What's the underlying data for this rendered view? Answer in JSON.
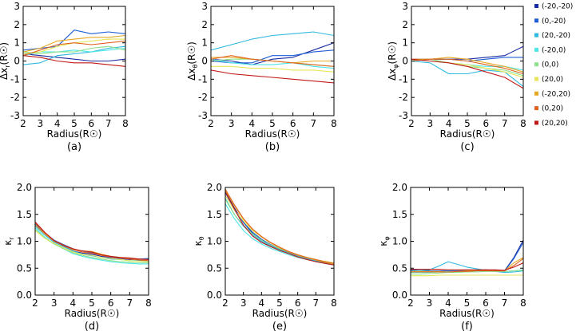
{
  "figure_title": "",
  "chart_data": [
    {
      "id": "a",
      "type": "line",
      "panel_label": "(a)",
      "ylabel_main": "Δx",
      "ylabel_sub": "r",
      "ylabel_unit": "(R☉)",
      "xlabel": "Radius(R☉)",
      "xlim": [
        2,
        8
      ],
      "ylim": [
        -3,
        3
      ],
      "xticks": [
        2,
        3,
        4,
        5,
        6,
        7,
        8
      ],
      "yticks": [
        -3,
        -2,
        -1,
        0,
        1,
        2,
        3
      ],
      "x": [
        2,
        3,
        4,
        5,
        6,
        7,
        8
      ],
      "series": [
        {
          "name": "(-20,-20)",
          "values": [
            0.4,
            0.3,
            0.2,
            0.1,
            0.0,
            0.0,
            0.1
          ]
        },
        {
          "name": "(0,-20)",
          "values": [
            0.6,
            0.7,
            0.8,
            1.7,
            1.5,
            1.6,
            1.5
          ]
        },
        {
          "name": "(20,-20)",
          "values": [
            -0.2,
            -0.1,
            0.3,
            0.4,
            0.5,
            0.7,
            0.8
          ]
        },
        {
          "name": "(-20,0)",
          "values": [
            0.3,
            0.5,
            0.5,
            0.6,
            0.5,
            0.6,
            0.7
          ]
        },
        {
          "name": "(0,0)",
          "values": [
            0.5,
            0.4,
            0.5,
            0.5,
            0.7,
            0.8,
            0.6
          ]
        },
        {
          "name": "(20,0)",
          "values": [
            0.4,
            0.5,
            0.8,
            1.0,
            1.1,
            1.2,
            1.2
          ]
        },
        {
          "name": "(-20,20)",
          "values": [
            0.5,
            0.7,
            1.1,
            1.2,
            1.3,
            1.3,
            1.4
          ]
        },
        {
          "name": "(0,20)",
          "values": [
            0.3,
            0.6,
            0.9,
            1.0,
            0.9,
            1.0,
            1.1
          ]
        },
        {
          "name": "(20,20)",
          "values": [
            0.3,
            0.2,
            0.0,
            -0.1,
            -0.1,
            -0.2,
            -0.3
          ]
        }
      ]
    },
    {
      "id": "b",
      "type": "line",
      "panel_label": "(b)",
      "ylabel_main": "Δx",
      "ylabel_sub": "θ",
      "ylabel_unit": "(R☉)",
      "xlabel": "Radius(R☉)",
      "xlim": [
        2,
        8
      ],
      "ylim": [
        -3,
        3
      ],
      "xticks": [
        2,
        3,
        4,
        5,
        6,
        7,
        8
      ],
      "yticks": [
        -3,
        -2,
        -1,
        0,
        1,
        2,
        3
      ],
      "x": [
        2,
        3,
        4,
        5,
        6,
        7,
        8
      ],
      "series": [
        {
          "name": "(-20,-20)",
          "values": [
            0.1,
            0.0,
            -0.2,
            0.1,
            0.2,
            0.6,
            1.0
          ]
        },
        {
          "name": "(0,-20)",
          "values": [
            0.0,
            -0.1,
            -0.1,
            0.3,
            0.3,
            0.5,
            0.6
          ]
        },
        {
          "name": "(20,-20)",
          "values": [
            0.6,
            0.9,
            1.2,
            1.4,
            1.5,
            1.6,
            1.4
          ]
        },
        {
          "name": "(-20,0)",
          "values": [
            0.1,
            -0.1,
            -0.2,
            -0.2,
            -0.1,
            -0.3,
            -0.4
          ]
        },
        {
          "name": "(0,0)",
          "values": [
            0.0,
            0.1,
            0.1,
            0.0,
            -0.1,
            -0.2,
            -0.3
          ]
        },
        {
          "name": "(20,0)",
          "values": [
            -0.3,
            -0.3,
            -0.4,
            -0.4,
            -0.5,
            -0.5,
            -0.6
          ]
        },
        {
          "name": "(-20,20)",
          "values": [
            0.2,
            0.2,
            0.1,
            0.0,
            -0.1,
            0.0,
            0.0
          ]
        },
        {
          "name": "(0,20)",
          "values": [
            0.1,
            0.3,
            0.1,
            0.0,
            -0.1,
            -0.2,
            -0.3
          ]
        },
        {
          "name": "(20,20)",
          "values": [
            -0.5,
            -0.7,
            -0.8,
            -0.9,
            -1.0,
            -1.1,
            -1.2
          ]
        }
      ]
    },
    {
      "id": "c",
      "type": "line",
      "panel_label": "(c)",
      "ylabel_main": "Δx",
      "ylabel_sub": "φ",
      "ylabel_unit": "(R☉)",
      "xlabel": "Radius(R☉)",
      "xlim": [
        2,
        8
      ],
      "ylim": [
        -3,
        3
      ],
      "xticks": [
        2,
        3,
        4,
        5,
        6,
        7,
        8
      ],
      "yticks": [
        -3,
        -2,
        -1,
        0,
        1,
        2,
        3
      ],
      "x": [
        2,
        3,
        4,
        5,
        6,
        7,
        8
      ],
      "series": [
        {
          "name": "(-20,-20)",
          "values": [
            0.1,
            0.1,
            0.1,
            0.1,
            0.2,
            0.3,
            0.8
          ]
        },
        {
          "name": "(0,-20)",
          "values": [
            0.1,
            0.1,
            0.1,
            0.0,
            0.1,
            0.2,
            0.2
          ]
        },
        {
          "name": "(20,-20)",
          "values": [
            0.0,
            -0.1,
            -0.7,
            -0.7,
            -0.5,
            -0.6,
            -1.4
          ]
        },
        {
          "name": "(-20,0)",
          "values": [
            0.1,
            0.0,
            -0.1,
            -0.2,
            -0.3,
            -0.3,
            -0.5
          ]
        },
        {
          "name": "(0,0)",
          "values": [
            0.0,
            0.1,
            -0.1,
            -0.3,
            -0.4,
            -0.5,
            -0.8
          ]
        },
        {
          "name": "(20,0)",
          "values": [
            0.1,
            0.0,
            -0.1,
            -0.2,
            -0.4,
            -0.6,
            -0.9
          ]
        },
        {
          "name": "(-20,20)",
          "values": [
            0.1,
            0.1,
            0.2,
            0.1,
            -0.1,
            -0.3,
            -0.6
          ]
        },
        {
          "name": "(0,20)",
          "values": [
            0.0,
            0.1,
            0.1,
            0.0,
            -0.2,
            -0.4,
            -0.7
          ]
        },
        {
          "name": "(20,20)",
          "values": [
            0.1,
            0.0,
            -0.1,
            -0.3,
            -0.6,
            -0.9,
            -1.5
          ]
        }
      ]
    },
    {
      "id": "d",
      "type": "line",
      "panel_label": "(d)",
      "ylabel_main": "κ",
      "ylabel_sub": "r",
      "ylabel_unit": "",
      "xlabel": "Radius(R☉)",
      "xlim": [
        2,
        8
      ],
      "ylim": [
        0,
        2
      ],
      "xticks": [
        2,
        3,
        4,
        5,
        6,
        7,
        8
      ],
      "yticks": [
        "0.0",
        "0.5",
        "1.0",
        "1.5",
        "2.0"
      ],
      "x": [
        2,
        2.5,
        3,
        3.5,
        4,
        4.5,
        5,
        5.5,
        6,
        6.5,
        7,
        7.5,
        8
      ],
      "series": [
        {
          "name": "(-20,-20)",
          "values": [
            1.33,
            1.15,
            1.0,
            0.92,
            0.82,
            0.78,
            0.76,
            0.72,
            0.7,
            0.68,
            0.66,
            0.67,
            0.67
          ]
        },
        {
          "name": "(0,-20)",
          "values": [
            1.32,
            1.16,
            1.02,
            0.94,
            0.86,
            0.8,
            0.79,
            0.75,
            0.71,
            0.69,
            0.68,
            0.67,
            0.68
          ]
        },
        {
          "name": "(20,-20)",
          "values": [
            1.28,
            1.12,
            0.98,
            0.9,
            0.82,
            0.76,
            0.73,
            0.7,
            0.67,
            0.66,
            0.64,
            0.64,
            0.63
          ]
        },
        {
          "name": "(-20,0)",
          "values": [
            1.25,
            1.08,
            0.95,
            0.86,
            0.77,
            0.72,
            0.68,
            0.65,
            0.62,
            0.6,
            0.59,
            0.58,
            0.58
          ]
        },
        {
          "name": "(0,0)",
          "values": [
            1.22,
            1.06,
            0.95,
            0.86,
            0.79,
            0.74,
            0.7,
            0.67,
            0.64,
            0.62,
            0.61,
            0.6,
            0.6
          ]
        },
        {
          "name": "(20,0)",
          "values": [
            1.2,
            1.06,
            0.96,
            0.88,
            0.8,
            0.76,
            0.74,
            0.7,
            0.68,
            0.66,
            0.64,
            0.63,
            0.62
          ]
        },
        {
          "name": "(-20,20)",
          "values": [
            1.3,
            1.14,
            1.0,
            0.92,
            0.84,
            0.82,
            0.81,
            0.76,
            0.72,
            0.7,
            0.69,
            0.67,
            0.66
          ]
        },
        {
          "name": "(0,20)",
          "values": [
            1.34,
            1.16,
            1.01,
            0.93,
            0.85,
            0.8,
            0.78,
            0.74,
            0.71,
            0.69,
            0.67,
            0.65,
            0.64
          ]
        },
        {
          "name": "(20,20)",
          "values": [
            1.36,
            1.17,
            1.01,
            0.92,
            0.86,
            0.82,
            0.8,
            0.75,
            0.72,
            0.7,
            0.69,
            0.67,
            0.66
          ]
        }
      ]
    },
    {
      "id": "e",
      "type": "line",
      "panel_label": "(e)",
      "ylabel_main": "κ",
      "ylabel_sub": "θ",
      "ylabel_unit": "",
      "xlabel": "Radius(R☉)",
      "xlim": [
        2,
        8
      ],
      "ylim": [
        0,
        2
      ],
      "xticks": [
        2,
        3,
        4,
        5,
        6,
        7,
        8
      ],
      "yticks": [
        "0.0",
        "0.5",
        "1.0",
        "1.5",
        "2.0"
      ],
      "x": [
        2,
        2.5,
        3,
        3.5,
        4,
        4.5,
        5,
        5.5,
        6,
        6.5,
        7,
        7.5,
        8
      ],
      "series": [
        {
          "name": "(-20,-20)",
          "values": [
            1.93,
            1.62,
            1.35,
            1.15,
            1.02,
            0.92,
            0.85,
            0.78,
            0.72,
            0.67,
            0.63,
            0.59,
            0.56
          ]
        },
        {
          "name": "(0,-20)",
          "values": [
            1.9,
            1.6,
            1.35,
            1.17,
            1.04,
            0.94,
            0.86,
            0.79,
            0.73,
            0.68,
            0.64,
            0.6,
            0.57
          ]
        },
        {
          "name": "(20,-20)",
          "values": [
            1.8,
            1.5,
            1.28,
            1.12,
            1.0,
            0.91,
            0.84,
            0.78,
            0.72,
            0.68,
            0.64,
            0.61,
            0.58
          ]
        },
        {
          "name": "(-20,0)",
          "values": [
            1.7,
            1.42,
            1.2,
            1.05,
            0.95,
            0.87,
            0.81,
            0.75,
            0.7,
            0.66,
            0.62,
            0.59,
            0.56
          ]
        },
        {
          "name": "(0,0)",
          "values": [
            1.78,
            1.5,
            1.3,
            1.14,
            1.02,
            0.93,
            0.86,
            0.8,
            0.75,
            0.7,
            0.66,
            0.62,
            0.59
          ]
        },
        {
          "name": "(20,0)",
          "values": [
            1.85,
            1.58,
            1.38,
            1.2,
            1.08,
            0.97,
            0.88,
            0.81,
            0.75,
            0.7,
            0.66,
            0.63,
            0.6
          ]
        },
        {
          "name": "(-20,20)",
          "values": [
            1.95,
            1.66,
            1.41,
            1.22,
            1.08,
            0.97,
            0.88,
            0.8,
            0.74,
            0.69,
            0.65,
            0.61,
            0.58
          ]
        },
        {
          "name": "(0,20)",
          "values": [
            1.97,
            1.68,
            1.42,
            1.23,
            1.09,
            0.98,
            0.89,
            0.81,
            0.75,
            0.7,
            0.66,
            0.62,
            0.59
          ]
        },
        {
          "name": "(20,20)",
          "values": [
            1.92,
            1.6,
            1.3,
            1.1,
            0.98,
            0.9,
            0.83,
            0.77,
            0.71,
            0.66,
            0.62,
            0.59,
            0.56
          ]
        }
      ]
    },
    {
      "id": "f",
      "type": "line",
      "panel_label": "(f)",
      "ylabel_main": "κ",
      "ylabel_sub": "φ",
      "ylabel_unit": "",
      "xlabel": "Radius(R☉)",
      "xlim": [
        2,
        8
      ],
      "ylim": [
        0,
        2
      ],
      "xticks": [
        2,
        3,
        4,
        5,
        6,
        7,
        8
      ],
      "yticks": [
        "0.0",
        "0.5",
        "1.0",
        "1.5",
        "2.0"
      ],
      "x": [
        2,
        2.5,
        3,
        3.5,
        4,
        4.5,
        5,
        5.5,
        6,
        6.5,
        7,
        7.5,
        8
      ],
      "series": [
        {
          "name": "(-20,-20)",
          "values": [
            0.47,
            0.46,
            0.45,
            0.44,
            0.43,
            0.44,
            0.45,
            0.46,
            0.47,
            0.46,
            0.45,
            0.7,
            1.02
          ]
        },
        {
          "name": "(0,-20)",
          "values": [
            0.46,
            0.46,
            0.45,
            0.45,
            0.45,
            0.45,
            0.46,
            0.46,
            0.46,
            0.45,
            0.44,
            0.68,
            0.98
          ]
        },
        {
          "name": "(20,-20)",
          "values": [
            0.45,
            0.46,
            0.47,
            0.54,
            0.62,
            0.57,
            0.52,
            0.49,
            0.46,
            0.44,
            0.42,
            0.43,
            0.45
          ]
        },
        {
          "name": "(-20,0)",
          "values": [
            0.42,
            0.42,
            0.42,
            0.43,
            0.44,
            0.44,
            0.44,
            0.45,
            0.45,
            0.45,
            0.44,
            0.45,
            0.47
          ]
        },
        {
          "name": "(0,0)",
          "values": [
            0.39,
            0.39,
            0.4,
            0.41,
            0.42,
            0.42,
            0.43,
            0.43,
            0.44,
            0.44,
            0.44,
            0.45,
            0.46
          ]
        },
        {
          "name": "(20,0)",
          "values": [
            0.36,
            0.36,
            0.36,
            0.37,
            0.37,
            0.37,
            0.37,
            0.37,
            0.37,
            0.37,
            0.37,
            0.37,
            0.37
          ]
        },
        {
          "name": "(-20,20)",
          "values": [
            0.44,
            0.44,
            0.44,
            0.44,
            0.43,
            0.44,
            0.45,
            0.46,
            0.46,
            0.45,
            0.45,
            0.6,
            0.7
          ]
        },
        {
          "name": "(0,20)",
          "values": [
            0.43,
            0.43,
            0.43,
            0.43,
            0.43,
            0.44,
            0.44,
            0.45,
            0.45,
            0.45,
            0.45,
            0.55,
            0.68
          ]
        },
        {
          "name": "(20,20)",
          "values": [
            0.48,
            0.48,
            0.48,
            0.48,
            0.47,
            0.47,
            0.47,
            0.47,
            0.47,
            0.47,
            0.46,
            0.52,
            0.6
          ]
        }
      ]
    }
  ],
  "legend": {
    "placement": "right",
    "entries": [
      {
        "label": "(-20,-20)",
        "color": "#1a2aa0"
      },
      {
        "label": "(0,-20)",
        "color": "#1f5fd6"
      },
      {
        "label": "(20,-20)",
        "color": "#2fb9e0"
      },
      {
        "label": "(-20,0)",
        "color": "#4ee6e6"
      },
      {
        "label": "(0,0)",
        "color": "#8fe08a"
      },
      {
        "label": "(20,0)",
        "color": "#e6e65a"
      },
      {
        "label": "(-20,20)",
        "color": "#e6a820"
      },
      {
        "label": "(0,20)",
        "color": "#e06420"
      },
      {
        "label": "(20,20)",
        "color": "#c01818"
      }
    ]
  }
}
